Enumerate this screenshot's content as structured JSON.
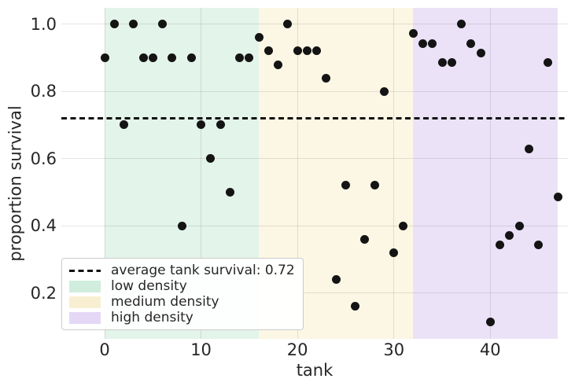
{
  "chart_data": {
    "type": "scatter",
    "title": "",
    "xlabel": "tank",
    "ylabel": "proportion survival",
    "xticks": [
      0,
      10,
      20,
      30,
      40
    ],
    "ytick_labels": [
      "1.0",
      "0.8",
      "0.6",
      "0.4",
      "0.2"
    ],
    "ytick_values": [
      1.0,
      0.8,
      0.6,
      0.4,
      0.2
    ],
    "xlim": [
      -4.5,
      48.05
    ],
    "ylim": [
      0.063,
      1.048
    ],
    "grid": true,
    "legend_position": "lower left",
    "point_color": "#141414",
    "series": [
      {
        "name": "low density",
        "x": [
          0,
          1,
          2,
          3,
          4,
          5,
          6,
          7,
          8,
          9,
          10,
          11,
          12,
          13,
          14,
          15
        ],
        "values": [
          0.9,
          1.0,
          0.7,
          1.0,
          0.9,
          0.9,
          1.0,
          0.9,
          0.4,
          0.9,
          0.7,
          0.6,
          0.7,
          0.5,
          0.9,
          0.9
        ]
      },
      {
        "name": "medium density",
        "x": [
          16,
          17,
          18,
          19,
          20,
          21,
          22,
          23,
          24,
          25,
          26,
          27,
          28,
          29,
          30,
          31
        ],
        "values": [
          0.96,
          0.92,
          0.88,
          1.0,
          0.92,
          0.92,
          0.92,
          0.84,
          0.24,
          0.52,
          0.16,
          0.36,
          0.52,
          0.8,
          0.32,
          0.4
        ]
      },
      {
        "name": "high density",
        "x": [
          32,
          33,
          34,
          35,
          36,
          37,
          38,
          39,
          40,
          41,
          42,
          43,
          44,
          45,
          46,
          47
        ],
        "values": [
          0.9714,
          0.9429,
          0.9429,
          0.8857,
          0.8857,
          1.0,
          0.9429,
          0.9143,
          0.1143,
          0.3429,
          0.3714,
          0.4,
          0.6286,
          0.3429,
          0.8857,
          0.4857
        ]
      }
    ],
    "average_line": {
      "y": 0.72,
      "label": "average tank survival: 0.72",
      "style": "dashed",
      "color": "#111111"
    },
    "spans": [
      {
        "name": "low density",
        "x_from": 0,
        "x_to": 16,
        "fill": "#e3f4ea",
        "legend_fill": "#d0edde"
      },
      {
        "name": "medium density",
        "x_from": 16,
        "x_to": 32,
        "fill": "#fcf7e4",
        "legend_fill": "#f8efd2"
      },
      {
        "name": "high density",
        "x_from": 32,
        "x_to": 47,
        "fill": "#ebe2f8",
        "legend_fill": "#e4d8f6"
      }
    ]
  },
  "legend": {
    "entries": [
      {
        "kind": "dashed_line",
        "label": "average tank survival: 0.72"
      },
      {
        "kind": "patch",
        "label": "low density"
      },
      {
        "kind": "patch",
        "label": "medium density"
      },
      {
        "kind": "patch",
        "label": "high density"
      }
    ]
  }
}
